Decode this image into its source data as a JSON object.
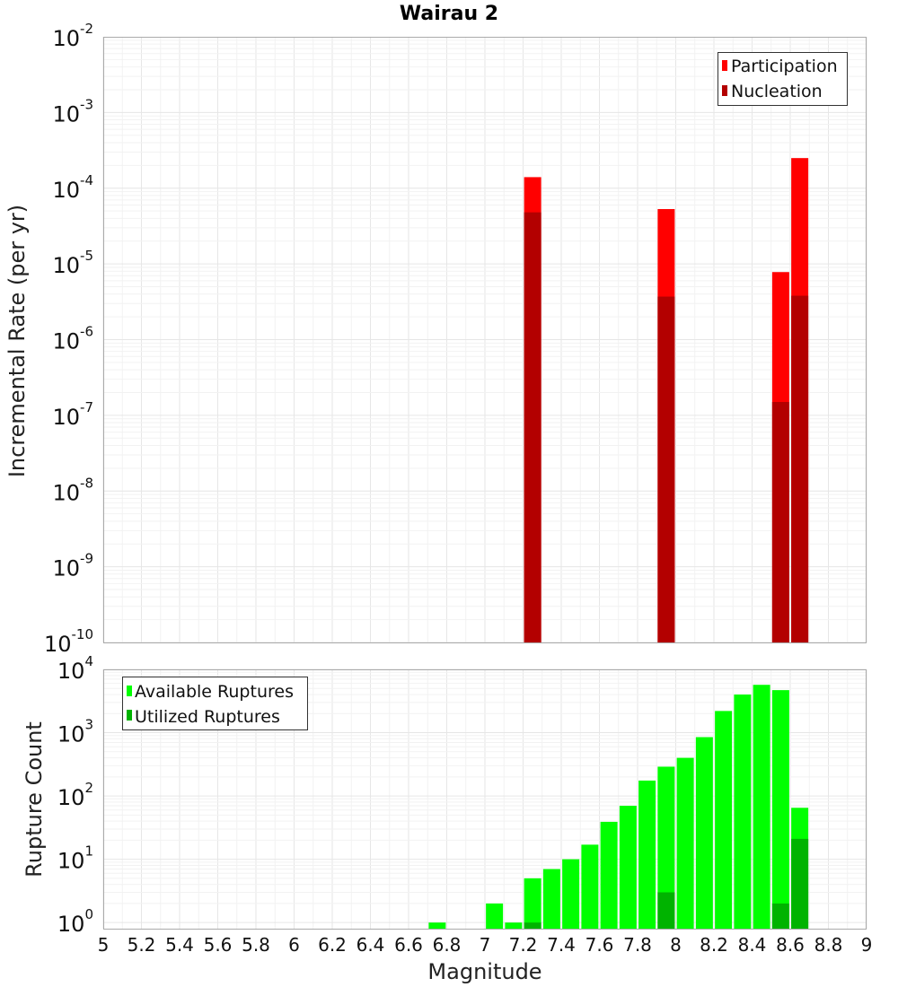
{
  "colors": {
    "participation": "#ff0000",
    "nucleation": "#b30000",
    "available": "#00ff00",
    "utilized": "#00b300"
  },
  "chart_data": [
    {
      "type": "bar",
      "title": "Wairau 2",
      "xlabel": "",
      "ylabel": "Incremental Rate (per yr)",
      "yscale": "log",
      "ylim": [
        1e-10,
        0.01
      ],
      "ytick_exponents": [
        "-10",
        "-9",
        "-8",
        "-7",
        "-6",
        "-5",
        "-4",
        "-3",
        "-2"
      ],
      "xlim": [
        5,
        9
      ],
      "legend": {
        "placement": "top-right",
        "entries": [
          "Participation",
          "Nucleation"
        ]
      },
      "grid": true,
      "x": [
        7.25,
        7.95,
        8.55,
        8.65
      ],
      "series": [
        {
          "name": "Participation",
          "values": [
            0.00014,
            5.3e-05,
            7.8e-06,
            0.00025
          ]
        },
        {
          "name": "Nucleation",
          "values": [
            4.8e-05,
            3.7e-06,
            1.5e-07,
            3.8e-06
          ]
        }
      ]
    },
    {
      "type": "bar",
      "title": "",
      "xlabel": "Magnitude",
      "ylabel": "Rupture Count",
      "yscale": "log",
      "ylim": [
        0.8,
        10000
      ],
      "ytick_exponents": [
        "0",
        "1",
        "2",
        "3",
        "4"
      ],
      "xlim": [
        5,
        9
      ],
      "xticks": [
        "5",
        "5.2",
        "5.4",
        "5.6",
        "5.8",
        "6",
        "6.2",
        "6.4",
        "6.6",
        "6.8",
        "7",
        "7.2",
        "7.4",
        "7.6",
        "7.8",
        "8",
        "8.2",
        "8.4",
        "8.6",
        "8.8",
        "9"
      ],
      "legend": {
        "placement": "top-left",
        "entries": [
          "Available Ruptures",
          "Utilized Ruptures"
        ]
      },
      "grid": true,
      "x": [
        6.75,
        7.05,
        7.15,
        7.25,
        7.35,
        7.45,
        7.55,
        7.65,
        7.75,
        7.85,
        7.95,
        8.05,
        8.15,
        8.25,
        8.35,
        8.45,
        8.55,
        8.65
      ],
      "series": [
        {
          "name": "Available Ruptures",
          "values": [
            1,
            2,
            1,
            5,
            7,
            10,
            17,
            39,
            70,
            175,
            290,
            400,
            850,
            2200,
            4000,
            5700,
            4700,
            65
          ]
        },
        {
          "name": "Utilized Ruptures",
          "values": [
            0,
            0,
            0,
            1,
            0,
            0,
            0,
            0,
            0,
            0,
            3,
            0,
            0,
            0,
            0,
            0,
            2,
            21
          ]
        }
      ]
    }
  ]
}
